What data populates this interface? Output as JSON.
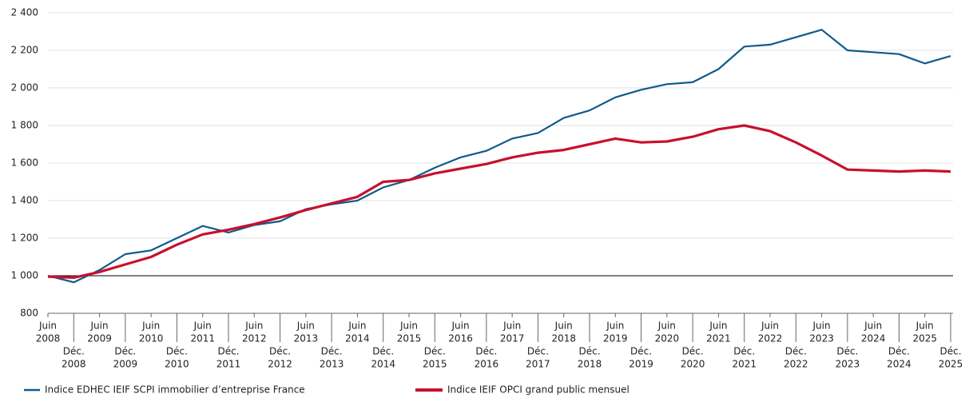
{
  "chart_data": {
    "type": "line",
    "categories": [
      [
        "Juin",
        "2008"
      ],
      [
        "Déc.",
        "2008"
      ],
      [
        "Juin",
        "2009"
      ],
      [
        "Déc.",
        "2009"
      ],
      [
        "Juin",
        "2010"
      ],
      [
        "Déc.",
        "2010"
      ],
      [
        "Juin",
        "2011"
      ],
      [
        "Déc.",
        "2011"
      ],
      [
        "Juin",
        "2012"
      ],
      [
        "Déc.",
        "2012"
      ],
      [
        "Juin",
        "2013"
      ],
      [
        "Déc.",
        "2013"
      ],
      [
        "Juin",
        "2014"
      ],
      [
        "Déc.",
        "2014"
      ],
      [
        "Juin",
        "2015"
      ],
      [
        "Déc.",
        "2015"
      ],
      [
        "Juin",
        "2016"
      ],
      [
        "Déc.",
        "2016"
      ],
      [
        "Juin",
        "2017"
      ],
      [
        "Déc.",
        "2017"
      ],
      [
        "Juin",
        "2018"
      ],
      [
        "Déc.",
        "2018"
      ],
      [
        "Juin",
        "2019"
      ],
      [
        "Déc.",
        "2019"
      ],
      [
        "Juin",
        "2020"
      ],
      [
        "Déc.",
        "2020"
      ],
      [
        "Juin",
        "2021"
      ],
      [
        "Déc.",
        "2021"
      ],
      [
        "Juin",
        "2022"
      ],
      [
        "Déc.",
        "2022"
      ],
      [
        "Juin",
        "2023"
      ],
      [
        "Déc.",
        "2023"
      ],
      [
        "Juin",
        "2024"
      ],
      [
        "Déc.",
        "2024"
      ],
      [
        "Juin",
        "2025"
      ],
      [
        "Déc.",
        "2025"
      ]
    ],
    "series": [
      {
        "name": "Indice EDHEC IEIF SCPI immobilier d’entreprise France",
        "color": "#0f5a8c",
        "values": [
          1000,
          965,
          1030,
          1115,
          1135,
          1200,
          1265,
          1230,
          1270,
          1290,
          1355,
          1380,
          1400,
          1470,
          1510,
          1575,
          1630,
          1665,
          1730,
          1760,
          1840,
          1880,
          1950,
          1990,
          2020,
          2030,
          2100,
          2220,
          2230,
          2270,
          2310,
          2200,
          2190,
          2180,
          2130,
          2170
        ]
      },
      {
        "name": "Indice IEIF OPCI grand public mensuel",
        "color": "#c8102e",
        "values": [
          995,
          990,
          1020,
          1060,
          1100,
          1165,
          1220,
          1245,
          1275,
          1310,
          1350,
          1385,
          1420,
          1500,
          1510,
          1545,
          1570,
          1595,
          1630,
          1655,
          1670,
          1700,
          1730,
          1710,
          1715,
          1740,
          1780,
          1800,
          1770,
          1710,
          1640,
          1565,
          1560,
          1555,
          1560,
          1555
        ]
      }
    ],
    "ylim": [
      800,
      2400
    ],
    "yticks": [
      800,
      {
        "value": 1000,
        "label": "1 000"
      },
      {
        "value": 1200,
        "label": "1 200"
      },
      {
        "value": 1400,
        "label": "1 400"
      },
      {
        "value": 1600,
        "label": "1 600"
      },
      {
        "value": 1800,
        "label": "1 800"
      },
      {
        "value": 2000,
        "label": "2 000"
      },
      {
        "value": 2200,
        "label": "2 200"
      },
      {
        "value": 2400,
        "label": "2 400"
      }
    ],
    "reference_line": 1000,
    "grid": true
  }
}
